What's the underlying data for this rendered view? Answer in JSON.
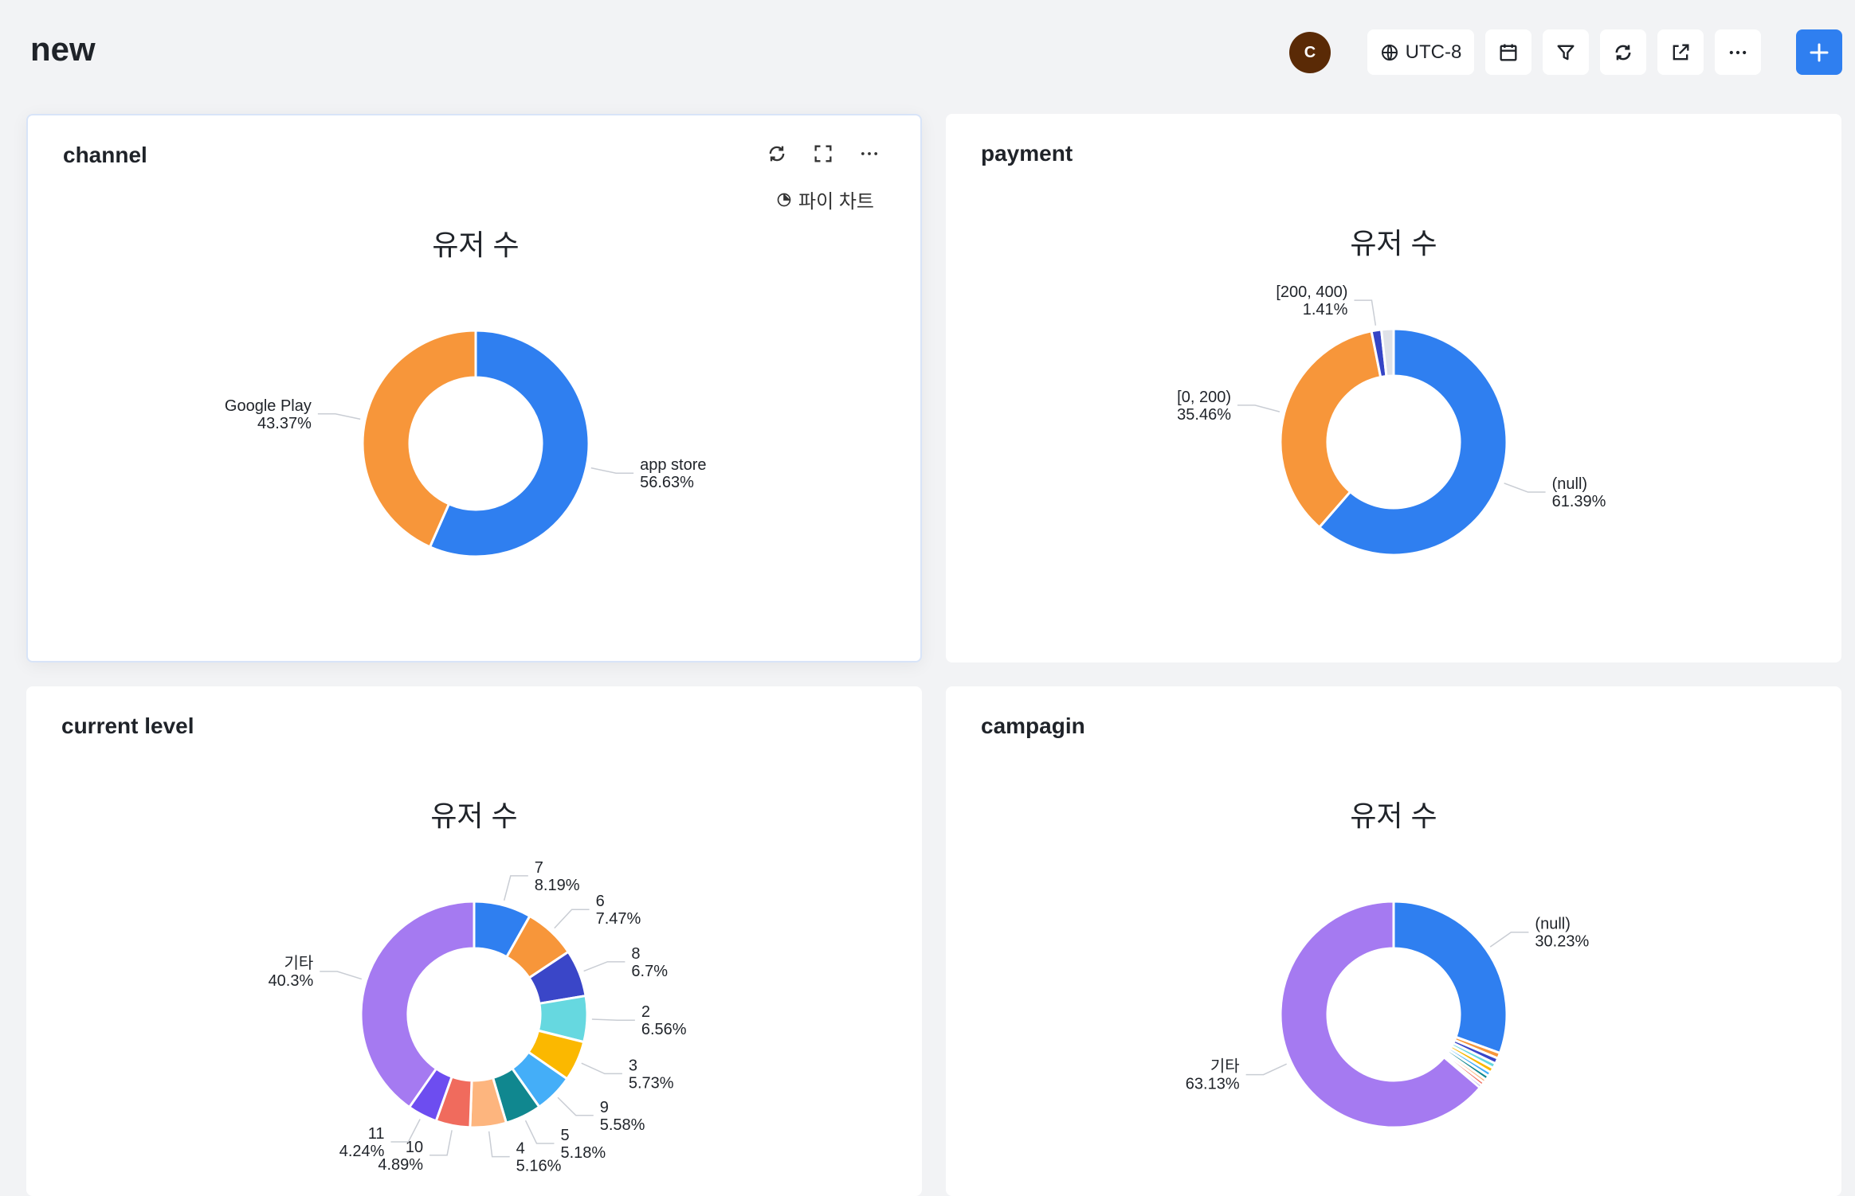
{
  "header": {
    "title": "new",
    "avatar_initial": "C",
    "timezone": "UTC-8",
    "accent": "#2f7ff0"
  },
  "cards": [
    {
      "title": "channel",
      "chart_type_label": "파이 차트",
      "chart_data": {
        "type": "pie",
        "title": "유저 수",
        "slices": [
          {
            "name": "app store",
            "value": 56.63,
            "label": "56.63%",
            "color": "#2f7ff0"
          },
          {
            "name": "Google Play",
            "value": 43.37,
            "label": "43.37%",
            "color": "#f7963a"
          }
        ]
      }
    },
    {
      "title": "payment",
      "chart_data": {
        "type": "pie",
        "title": "유저 수",
        "slices": [
          {
            "name": "(null)",
            "value": 61.39,
            "label": "61.39%",
            "color": "#2f7ff0"
          },
          {
            "name": "[0, 200)",
            "value": 35.46,
            "label": "35.46%",
            "color": "#f7963a"
          },
          {
            "name": "[200, 400)",
            "value": 1.41,
            "label": "1.41%",
            "color": "#3545c6"
          },
          {
            "name": "",
            "value": 1.74,
            "label": "",
            "color": "#dfe2e8"
          }
        ]
      }
    },
    {
      "title": "current level",
      "chart_data": {
        "type": "pie",
        "title": "유저 수",
        "slices": [
          {
            "name": "7",
            "value": 8.19,
            "label": "8.19%",
            "color": "#2f7ff0"
          },
          {
            "name": "6",
            "value": 7.47,
            "label": "7.47%",
            "color": "#f7963a"
          },
          {
            "name": "8",
            "value": 6.7,
            "label": "6.7%",
            "color": "#3a46c8"
          },
          {
            "name": "2",
            "value": 6.56,
            "label": "6.56%",
            "color": "#66d8e0"
          },
          {
            "name": "3",
            "value": 5.73,
            "label": "5.73%",
            "color": "#fbb800"
          },
          {
            "name": "9",
            "value": 5.58,
            "label": "5.58%",
            "color": "#44aef8"
          },
          {
            "name": "5",
            "value": 5.18,
            "label": "5.18%",
            "color": "#10878f"
          },
          {
            "name": "4",
            "value": 5.16,
            "label": "5.16%",
            "color": "#fdb57e"
          },
          {
            "name": "10",
            "value": 4.89,
            "label": "4.89%",
            "color": "#f06b5d"
          },
          {
            "name": "11",
            "value": 4.24,
            "label": "4.24%",
            "color": "#6d4df0"
          },
          {
            "name": "기타",
            "value": 40.3,
            "label": "40.3%",
            "color": "#a57af1"
          }
        ]
      }
    },
    {
      "title": "campagin",
      "chart_data": {
        "type": "pie",
        "title": "유저 수",
        "slices": [
          {
            "name": "(null)",
            "value": 30.23,
            "label": "30.23%",
            "color": "#2f7ff0"
          },
          {
            "name": "",
            "value": 0.8,
            "label": "",
            "color": "#f7963a"
          },
          {
            "name": "",
            "value": 0.8,
            "label": "",
            "color": "#3a46c8"
          },
          {
            "name": "",
            "value": 0.7,
            "label": "",
            "color": "#66d8e0"
          },
          {
            "name": "",
            "value": 0.7,
            "label": "",
            "color": "#fbb800"
          },
          {
            "name": "",
            "value": 0.6,
            "label": "",
            "color": "#44aef8"
          },
          {
            "name": "",
            "value": 0.6,
            "label": "",
            "color": "#10878f"
          },
          {
            "name": "",
            "value": 0.5,
            "label": "",
            "color": "#fdb57e"
          },
          {
            "name": "",
            "value": 0.5,
            "label": "",
            "color": "#f06b5d"
          },
          {
            "name": "",
            "value": 0.4,
            "label": "",
            "color": "#6d4df0"
          },
          {
            "name": "기타",
            "value": 63.13,
            "label": "63.13%",
            "color": "#a57af1"
          }
        ]
      }
    }
  ]
}
